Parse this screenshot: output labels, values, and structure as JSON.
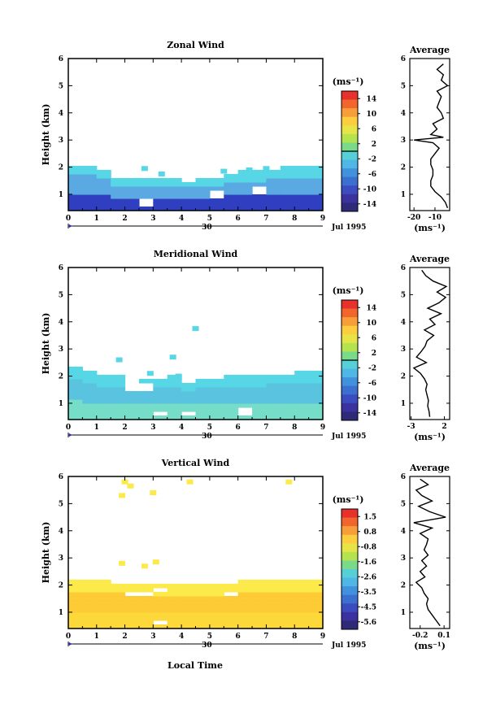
{
  "figure": {
    "xlabel": "Local Time"
  },
  "chart_data": [
    {
      "type": "heatmap",
      "title": "Zonal Wind",
      "ylabel": "Height (km)",
      "x_ticks": [
        "0",
        "1",
        "2",
        "3",
        "4",
        "5",
        "6",
        "7",
        "8",
        "9"
      ],
      "y_ticks": [
        "1",
        "2",
        "3",
        "4",
        "5",
        "6"
      ],
      "xlim": [
        0,
        9
      ],
      "ylim": [
        0.4,
        6
      ],
      "date_day": "30",
      "date_label": "Jul 1995",
      "colorbar": {
        "unit": "(ms⁻¹)",
        "labels": [
          "14",
          "10",
          "6",
          "2",
          "-2",
          "-6",
          "-10",
          "-14"
        ],
        "range": [
          -16,
          16
        ],
        "zero_line": true
      },
      "field": {
        "top_height": [
          2.0,
          2.0,
          1.85,
          1.45,
          1.45,
          1.45,
          1.55,
          1.55,
          1.5,
          1.45,
          1.5,
          1.7,
          1.75,
          1.75,
          1.85,
          1.9,
          1.95,
          1.95
        ],
        "isolated": [
          [
            2.7,
            1.95
          ],
          [
            3.3,
            1.75
          ],
          [
            2.6,
            1.5
          ],
          [
            5.5,
            1.85
          ],
          [
            7.0,
            1.95
          ],
          [
            6.4,
            1.9
          ]
        ],
        "gaps": [
          [
            5.3,
            0.95
          ],
          [
            6.8,
            1.1
          ],
          [
            4.1,
            1.55
          ],
          [
            2.8,
            0.6
          ]
        ],
        "low_colour": "#2f3fc0",
        "mid_colour": "#5aa9e2",
        "high_colour": "#57d6e6"
      },
      "average": {
        "title": "Average",
        "unit": "(ms⁻¹)",
        "x_ticks": [
          "-20",
          "-10"
        ],
        "xlim": [
          -22,
          -3
        ],
        "y_ticks": [
          "1",
          "2",
          "3",
          "4",
          "5",
          "6"
        ],
        "heights": [
          0.5,
          0.7,
          0.9,
          1.1,
          1.3,
          1.5,
          1.7,
          1.9,
          2.1,
          2.3,
          2.5,
          2.7,
          2.9,
          3.0,
          3.1,
          3.2,
          3.4,
          3.6,
          3.8,
          4.0,
          4.2,
          4.4,
          4.6,
          4.8,
          5.0,
          5.2,
          5.4,
          5.6,
          5.8
        ],
        "values": [
          -4,
          -5,
          -7,
          -10,
          -12,
          -12,
          -11,
          -11,
          -12,
          -12,
          -10,
          -8,
          -11,
          -20,
          -6,
          -12,
          -9,
          -11,
          -6,
          -7,
          -9,
          -8,
          -7,
          -9,
          -4,
          -7,
          -6,
          -9,
          -6
        ]
      }
    },
    {
      "type": "heatmap",
      "title": "Meridional Wind",
      "ylabel": "Height (km)",
      "x_ticks": [
        "0",
        "1",
        "2",
        "3",
        "4",
        "5",
        "6",
        "7",
        "8",
        "9"
      ],
      "y_ticks": [
        "1",
        "2",
        "3",
        "4",
        "5",
        "6"
      ],
      "xlim": [
        0,
        9
      ],
      "ylim": [
        0.4,
        6
      ],
      "date_day": "30",
      "date_label": "Jul 1995",
      "colorbar": {
        "unit": "(ms⁻¹)",
        "labels": [
          "14",
          "10",
          "6",
          "2",
          "-2",
          "-6",
          "-10",
          "-14"
        ],
        "range": [
          -16,
          16
        ],
        "zero_line": true
      },
      "field": {
        "top_height": [
          2.2,
          2.1,
          1.95,
          1.9,
          1.7,
          1.75,
          1.85,
          1.9,
          1.7,
          1.85,
          1.85,
          1.95,
          1.95,
          1.95,
          2.0,
          2.0,
          2.05,
          2.1
        ],
        "isolated": [
          [
            1.8,
            2.6
          ],
          [
            3.7,
            2.7
          ],
          [
            4.5,
            3.75
          ],
          [
            2.9,
            2.1
          ],
          [
            3.9,
            2.0
          ]
        ],
        "gaps": [
          [
            2.5,
            1.55
          ],
          [
            3.1,
            0.55
          ],
          [
            6.2,
            0.6
          ],
          [
            4.4,
            0.55
          ]
        ],
        "low_colour": "#76ddc8",
        "mid_colour": "#5ac3df",
        "high_colour": "#57d6e6"
      },
      "average": {
        "title": "Average",
        "unit": "(ms⁻¹)",
        "x_ticks": [
          "-3",
          "2"
        ],
        "xlim": [
          -3.2,
          2.8
        ],
        "y_ticks": [
          "1",
          "2",
          "3",
          "4",
          "5",
          "6"
        ],
        "heights": [
          0.5,
          0.7,
          0.9,
          1.1,
          1.3,
          1.5,
          1.7,
          1.9,
          2.1,
          2.3,
          2.5,
          2.7,
          2.9,
          3.1,
          3.3,
          3.5,
          3.7,
          3.9,
          4.1,
          4.3,
          4.5,
          4.7,
          4.9,
          5.1,
          5.3,
          5.5,
          5.7,
          5.9
        ],
        "values": [
          -0.2,
          -0.3,
          -0.5,
          -0.4,
          -0.6,
          -0.8,
          -0.6,
          -1.0,
          -1.6,
          -2.6,
          -0.7,
          -2.2,
          -1.5,
          -0.9,
          -0.6,
          0.4,
          -1.0,
          0.6,
          -0.2,
          1.5,
          -0.5,
          1.2,
          2.2,
          0.9,
          2.3,
          0.3,
          -0.8,
          -1.4
        ]
      }
    },
    {
      "type": "heatmap",
      "title": "Vertical Wind",
      "ylabel": "Height (km)",
      "x_ticks": [
        "0",
        "1",
        "2",
        "3",
        "4",
        "5",
        "6",
        "7",
        "8",
        "9"
      ],
      "y_ticks": [
        "1",
        "2",
        "3",
        "4",
        "5",
        "6"
      ],
      "xlim": [
        0,
        9
      ],
      "ylim": [
        0.4,
        6
      ],
      "date_day": "30",
      "date_label": "Jul 1995",
      "colorbar": {
        "unit": "(ms⁻¹)",
        "labels": [
          "1.5",
          "0.8",
          "-0.8",
          "-1.6",
          "-2.6",
          "-3.5",
          "-4.5",
          "-5.6"
        ],
        "range": [
          -6.0,
          2.0
        ],
        "zero_line": false
      },
      "field": {
        "top_height": [
          2.1,
          2.1,
          2.05,
          2.0,
          1.95,
          1.95,
          1.95,
          1.95,
          1.9,
          1.9,
          1.95,
          2.0,
          2.05,
          2.05,
          2.05,
          2.05,
          2.05,
          2.05
        ],
        "isolated": [
          [
            2.0,
            5.8
          ],
          [
            2.2,
            5.65
          ],
          [
            4.3,
            5.8
          ],
          [
            7.8,
            5.8
          ],
          [
            1.9,
            5.3
          ],
          [
            1.9,
            2.8
          ],
          [
            2.7,
            2.7
          ],
          [
            3.1,
            2.85
          ],
          [
            3.0,
            5.4
          ]
        ],
        "gaps": [
          [
            2.5,
            1.6
          ],
          [
            3.4,
            1.75
          ],
          [
            5.6,
            1.6
          ],
          [
            3.2,
            0.55
          ]
        ],
        "low_colour": "#fcd83a",
        "mid_colour": "#fccb35",
        "high_colour": "#fce94a"
      },
      "average": {
        "title": "Average",
        "unit": "(ms⁻¹)",
        "x_ticks": [
          "-0.2",
          "0.1"
        ],
        "xlim": [
          -0.33,
          0.17
        ],
        "y_ticks": [
          "1",
          "2",
          "3",
          "4",
          "5",
          "6"
        ],
        "heights": [
          0.5,
          0.7,
          0.9,
          1.1,
          1.3,
          1.5,
          1.7,
          1.9,
          2.1,
          2.3,
          2.5,
          2.7,
          2.9,
          3.1,
          3.3,
          3.5,
          3.7,
          3.9,
          4.1,
          4.3,
          4.5,
          4.7,
          4.9,
          5.1,
          5.3,
          5.5,
          5.7,
          5.9
        ],
        "values": [
          0.05,
          0.0,
          -0.05,
          -0.1,
          -0.12,
          -0.1,
          -0.15,
          -0.18,
          -0.25,
          -0.14,
          -0.2,
          -0.12,
          -0.18,
          -0.1,
          -0.15,
          -0.12,
          -0.1,
          -0.2,
          -0.05,
          -0.28,
          0.12,
          -0.08,
          -0.22,
          -0.05,
          -0.18,
          -0.25,
          -0.1,
          -0.2
        ]
      }
    }
  ]
}
